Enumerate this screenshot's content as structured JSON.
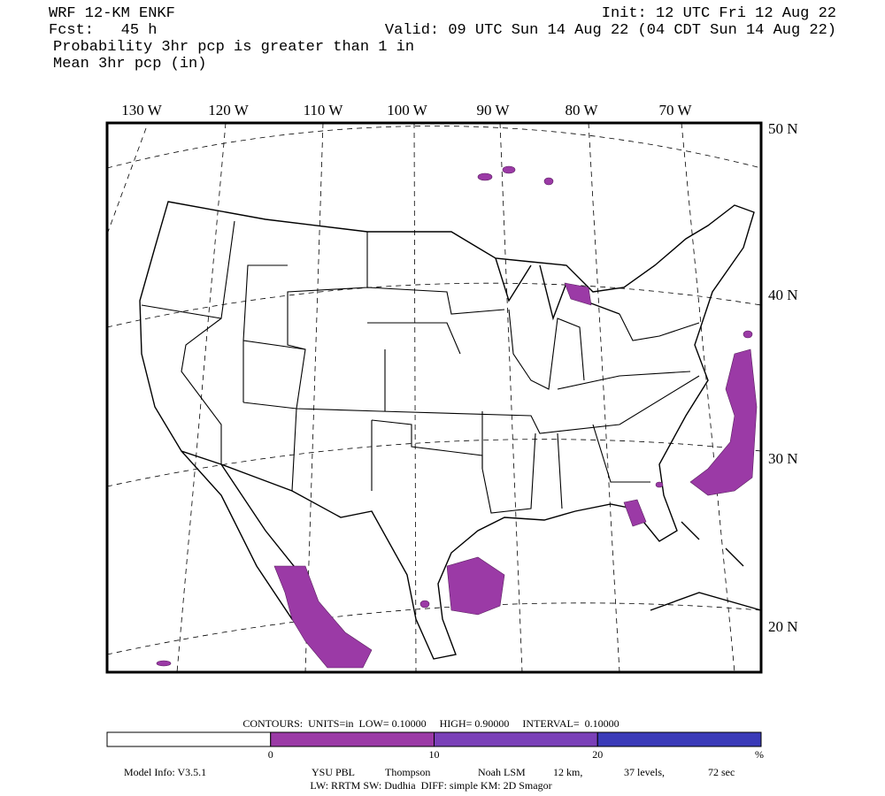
{
  "header": {
    "model": "WRF 12-KM ENKF",
    "forecast": "Fcst:   45 h",
    "field1": "Probability 3hr pcp is greater than 1 in",
    "field2": "Mean 3hr pcp (in)",
    "init": "Init: 12 UTC Fri 12 Aug 22",
    "valid": "Valid: 09 UTC Sun 14 Aug 22 (04 CDT Sun 14 Aug 22)"
  },
  "map": {
    "longitude_labels": [
      "130 W",
      "120 W",
      "110 W",
      "100 W",
      "90 W",
      "80 W",
      "70 W"
    ],
    "latitude_labels": [
      "50 N",
      "40 N",
      "30 N",
      "20 N"
    ]
  },
  "legend": {
    "contours": "CONTOURS:  UNITS=in  LOW= 0.10000     HIGH= 0.90000     INTERVAL=  0.10000",
    "colors": [
      "#ffffff",
      "#9b3aa6",
      "#7a40b8",
      "#3a3ab8"
    ],
    "labels": [
      "0",
      "10",
      "20",
      "%"
    ]
  },
  "footer": {
    "model_info": "Model Info: V3.5.1",
    "pbl": "YSU PBL",
    "microphysics": "Thompson",
    "lsm": "Noah LSM",
    "resolution": "12 km,",
    "levels": "37 levels,",
    "timestep": "72 sec",
    "physics": "LW: RRTM SW: Dudhia  DIFF: simple KM: 2D Smagor"
  }
}
